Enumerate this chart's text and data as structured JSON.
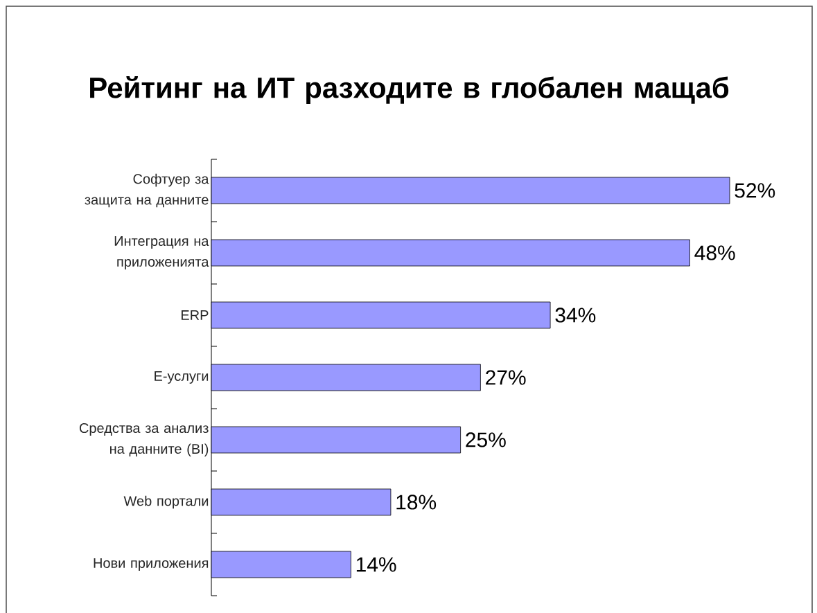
{
  "chart_data": {
    "type": "bar",
    "orientation": "horizontal",
    "title": "Рейтинг на ИТ разходите в глобален мащаб",
    "categories": [
      "Софтуер за защита на данните",
      "Интеграция на приложенията",
      "ERP",
      "Е-услуги",
      "Средства за анализ на данните (BI)",
      "Web портали",
      "Нови приложения"
    ],
    "values": [
      52,
      48,
      34,
      27,
      25,
      18,
      14
    ],
    "value_labels": [
      "52%",
      "48%",
      "34%",
      "27%",
      "25%",
      "18%",
      "14%"
    ],
    "color": "#9999ff"
  }
}
